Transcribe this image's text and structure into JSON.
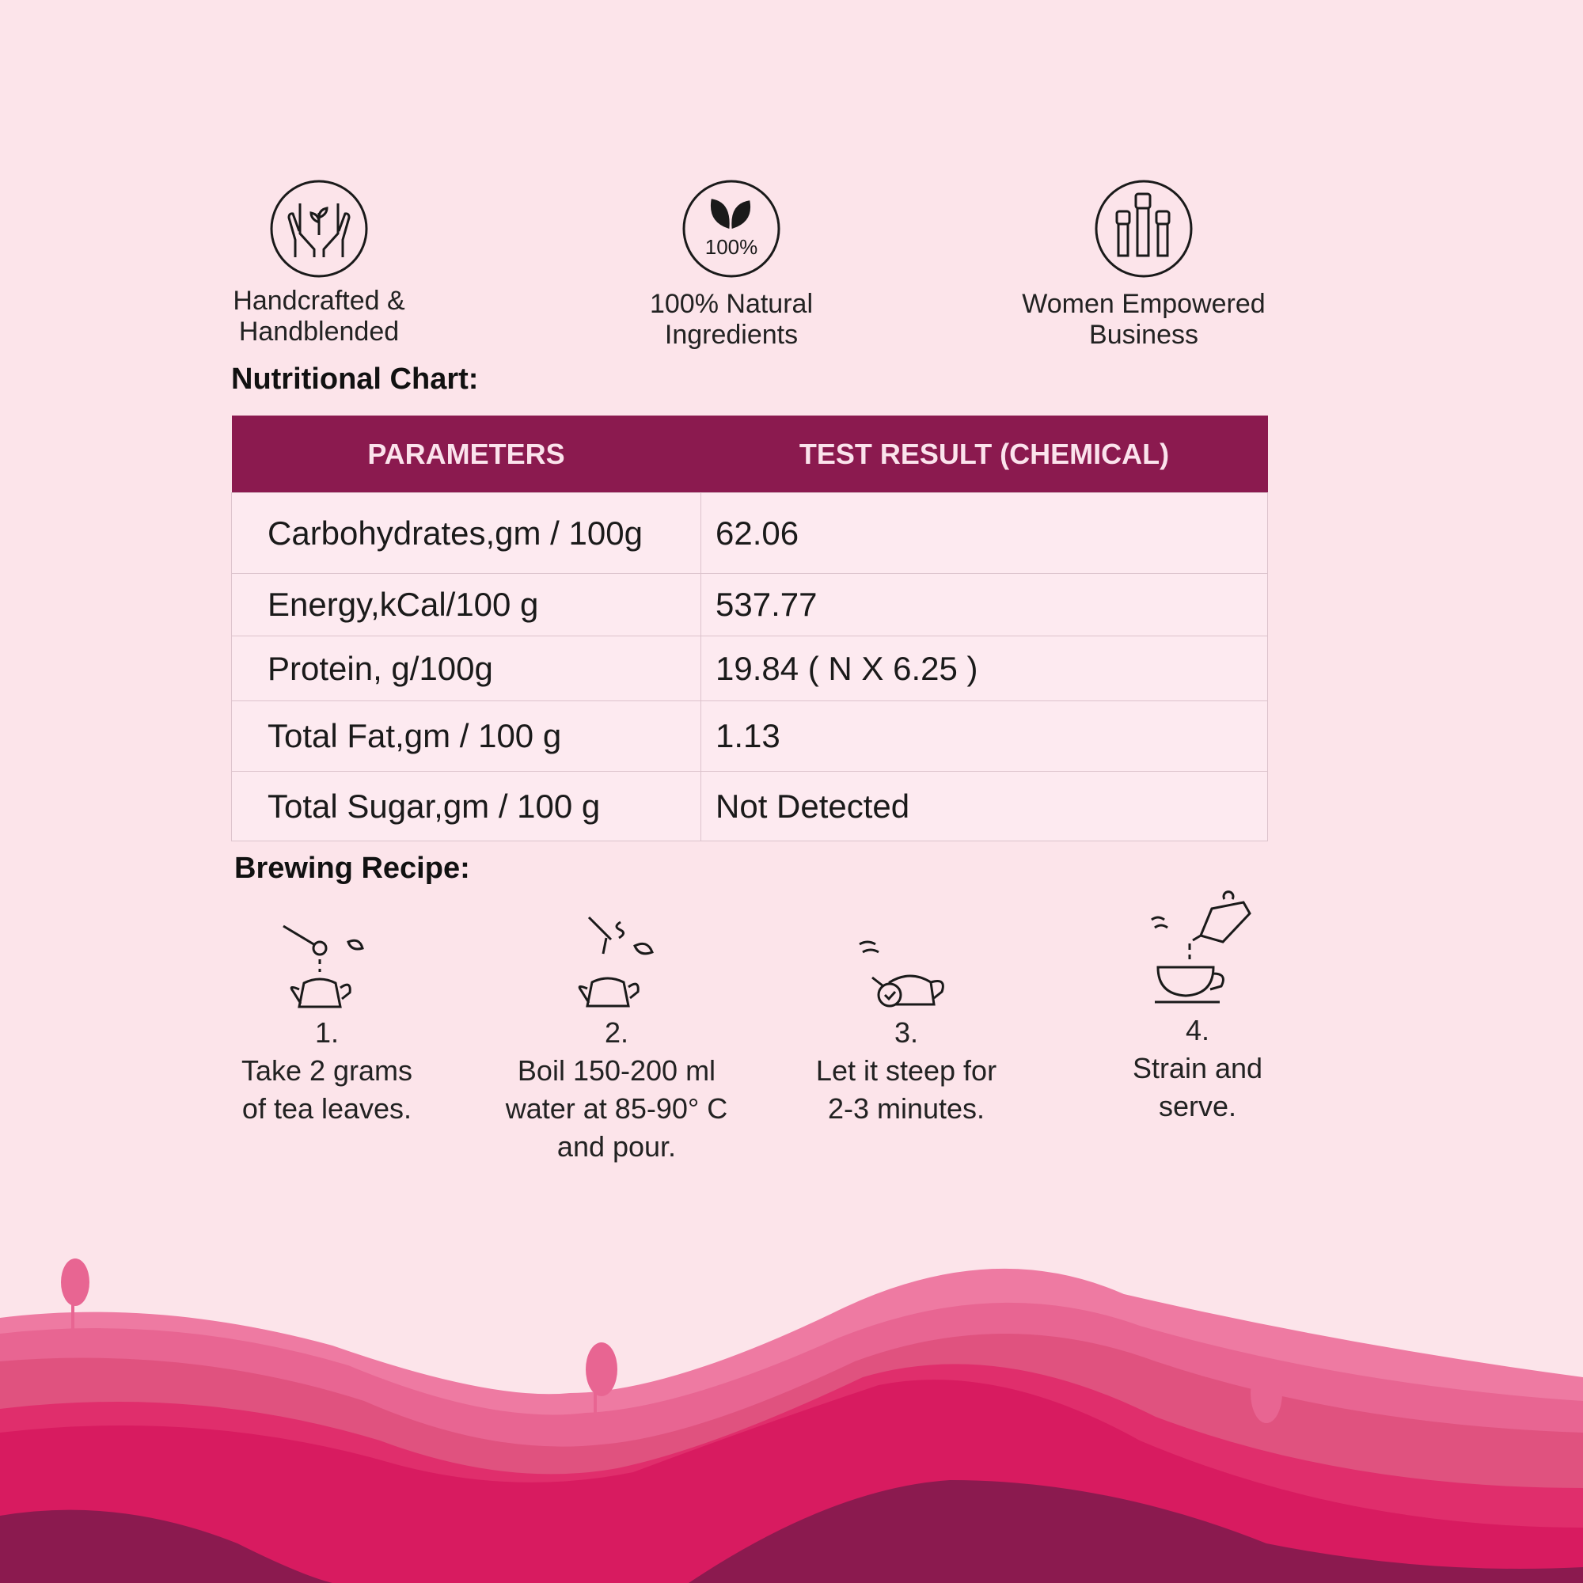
{
  "features": [
    {
      "icon": "hands-leaf-icon",
      "lines": [
        "Handcrafted &",
        "Handblended"
      ]
    },
    {
      "icon": "leaf-100-percent-icon",
      "badge": "100%",
      "lines": [
        "100% Natural",
        "Ingredients"
      ]
    },
    {
      "icon": "raised-fists-icon",
      "lines": [
        "Women Empowered",
        "Business"
      ]
    }
  ],
  "nutrition": {
    "heading": "Nutritional Chart:",
    "columns": [
      "PARAMETERS",
      "TEST RESULT (CHEMICAL)"
    ],
    "rows": [
      [
        "Carbohydrates,gm / 100g",
        "62.06"
      ],
      [
        "Energy,kCal/100 g",
        "537.77"
      ],
      [
        "Protein, g/100g",
        "19.84 ( N X 6.25 )"
      ],
      [
        "Total Fat,gm / 100 g",
        "1.13"
      ],
      [
        "Total Sugar,gm / 100 g",
        "Not Detected"
      ]
    ]
  },
  "brewing": {
    "heading": "Brewing Recipe:",
    "steps": [
      {
        "num": "1.",
        "icon": "spoon-teapot-icon",
        "lines": [
          "Take 2 grams",
          "of tea leaves."
        ]
      },
      {
        "num": "2.",
        "icon": "kettle-pour-icon",
        "lines": [
          "Boil 150-200 ml",
          "water at 85-90° C",
          "and pour."
        ]
      },
      {
        "num": "3.",
        "icon": "teapot-timer-icon",
        "lines": [
          "Let it steep for",
          "2-3 minutes."
        ]
      },
      {
        "num": "4.",
        "icon": "teapot-cup-icon",
        "lines": [
          "Strain and",
          "serve."
        ]
      }
    ]
  },
  "colors": {
    "background": "#fce4ea",
    "header": "#8b1a4f",
    "hill_light": "#ee7aa2",
    "hill_mid": "#e0527f",
    "hill_deep": "#d81b60",
    "hill_dark": "#8b1a4f"
  }
}
